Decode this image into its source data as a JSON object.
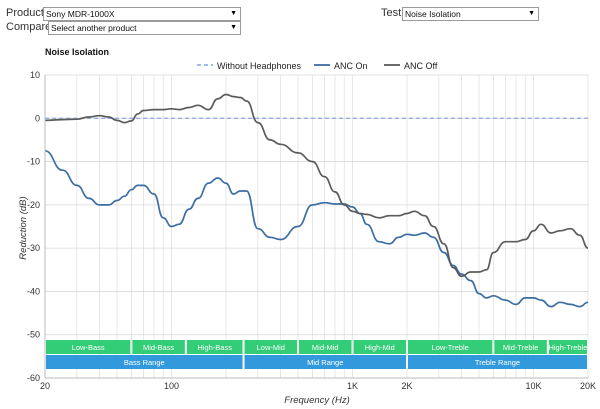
{
  "controls": {
    "product_label": "Product",
    "product_value": "Sony MDR-1000X",
    "compare_label": "Compare",
    "compare_value": "Select another product",
    "test_label": "Test",
    "test_value": "Noise Isolation"
  },
  "icons": {
    "dropdown": "dropdown-arrow-icon"
  },
  "colors": {
    "without_headphones": "#8fb1e6",
    "anc_on": "#3b6ea5",
    "anc_off": "#5b5b5b",
    "band_green": "#33cc77",
    "band_blue": "#3399dd"
  },
  "chart_data": {
    "type": "line",
    "title": "Noise Isolation",
    "xlabel": "Frequency (Hz)",
    "ylabel": "Reduction (dB)",
    "x_scale": "log",
    "xlim": [
      20,
      20000
    ],
    "ylim": [
      -60,
      10
    ],
    "x_ticks": [
      {
        "value": 20,
        "label": "20"
      },
      {
        "value": 100,
        "label": "100"
      },
      {
        "value": 1000,
        "label": "1K"
      },
      {
        "value": 2000,
        "label": "2K"
      },
      {
        "value": 10000,
        "label": "10K"
      },
      {
        "value": 20000,
        "label": "20K"
      }
    ],
    "y_ticks": [
      10,
      0,
      -10,
      -20,
      -30,
      -40,
      -50,
      -60
    ],
    "grid": true,
    "legend_position": "top",
    "series": [
      {
        "name": "Without Headphones",
        "style": "dashed",
        "x": [
          20,
          20000
        ],
        "y": [
          0,
          0
        ]
      },
      {
        "name": "ANC On",
        "style": "solid",
        "x": [
          20,
          25,
          30,
          35,
          40,
          45,
          50,
          55,
          60,
          65,
          70,
          80,
          90,
          100,
          110,
          125,
          140,
          160,
          180,
          200,
          220,
          240,
          260,
          300,
          350,
          400,
          500,
          600,
          700,
          800,
          900,
          1000,
          1100,
          1200,
          1400,
          1600,
          1800,
          2000,
          2200,
          2500,
          2800,
          3200,
          3600,
          4000,
          4500,
          5000,
          5500,
          6000,
          7000,
          8000,
          9000,
          10000,
          11000,
          12500,
          14000,
          16000,
          18000,
          20000
        ],
        "y": [
          -7.5,
          -12,
          -15.5,
          -18.5,
          -20,
          -20,
          -19,
          -18,
          -16.5,
          -15.5,
          -15.5,
          -17.5,
          -23,
          -25,
          -24.5,
          -21,
          -18.5,
          -15,
          -13.8,
          -15,
          -17.5,
          -16.8,
          -16.8,
          -25.5,
          -27.5,
          -28,
          -25,
          -20,
          -19.5,
          -19.8,
          -19.8,
          -20.5,
          -22,
          -24.5,
          -28.5,
          -29,
          -27.5,
          -26.8,
          -27,
          -26.5,
          -27.5,
          -31,
          -34,
          -36,
          -37.5,
          -40.5,
          -41.5,
          -41,
          -42,
          -43,
          -41.5,
          -41.5,
          -42,
          -43.5,
          -42.5,
          -43,
          -43.5,
          -42.5
        ]
      },
      {
        "name": "ANC Off",
        "style": "solid",
        "x": [
          20,
          25,
          30,
          35,
          40,
          45,
          50,
          55,
          60,
          65,
          70,
          80,
          90,
          100,
          110,
          125,
          140,
          160,
          180,
          200,
          220,
          240,
          260,
          300,
          350,
          400,
          500,
          600,
          700,
          800,
          900,
          1000,
          1100,
          1200,
          1400,
          1600,
          1800,
          2000,
          2200,
          2500,
          2800,
          3200,
          3600,
          4000,
          4500,
          5000,
          5500,
          6000,
          7000,
          8000,
          9000,
          10000,
          11000,
          12500,
          14000,
          16000,
          18000,
          20000
        ],
        "y": [
          -0.5,
          -0.3,
          -0.2,
          0.3,
          0.6,
          0.3,
          -0.5,
          -1,
          -0.6,
          1,
          1.8,
          2,
          2,
          2.2,
          2,
          2.5,
          3,
          2,
          4.5,
          5.5,
          5,
          4.8,
          4,
          -1,
          -5,
          -6,
          -8,
          -10,
          -13.5,
          -17,
          -20,
          -21.5,
          -22,
          -22.2,
          -23,
          -22.5,
          -22.5,
          -22,
          -21.5,
          -22.5,
          -25,
          -29,
          -34.5,
          -36.5,
          -35.5,
          -35.5,
          -35,
          -31,
          -28.5,
          -28.5,
          -28,
          -26,
          -24.5,
          -26.5,
          -26,
          -25.5,
          -27,
          -30
        ]
      }
    ],
    "bands": {
      "sub": [
        {
          "label": "Low-Bass",
          "from": 20,
          "to": 60
        },
        {
          "label": "Mid-Bass",
          "from": 60,
          "to": 120
        },
        {
          "label": "High-Bass",
          "from": 120,
          "to": 250
        },
        {
          "label": "Low-Mid",
          "from": 250,
          "to": 500
        },
        {
          "label": "Mid-Mid",
          "from": 500,
          "to": 1000
        },
        {
          "label": "High-Mid",
          "from": 1000,
          "to": 2000
        },
        {
          "label": "Low-Treble",
          "from": 2000,
          "to": 6000
        },
        {
          "label": "Mid-Treble",
          "from": 6000,
          "to": 12000
        },
        {
          "label": "High-Treble",
          "from": 12000,
          "to": 20000
        }
      ],
      "range": [
        {
          "label": "Bass Range",
          "from": 20,
          "to": 250
        },
        {
          "label": "Mid Range",
          "from": 250,
          "to": 2000
        },
        {
          "label": "Treble Range",
          "from": 2000,
          "to": 20000
        }
      ]
    }
  }
}
